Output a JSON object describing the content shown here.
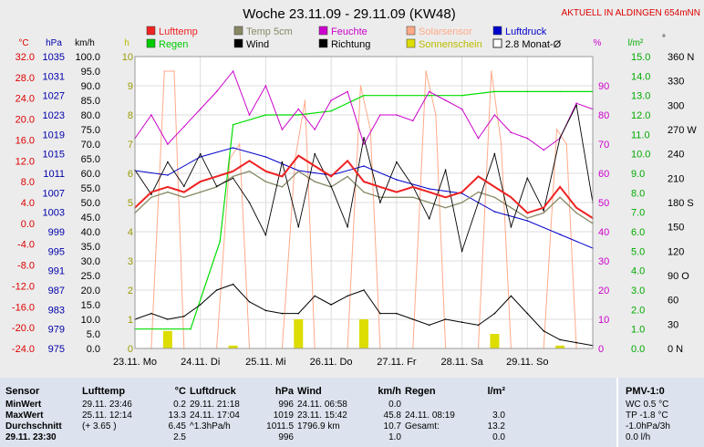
{
  "title": "Woche 23.11.09 - 29.11.09 (KW48)",
  "banner": "AKTUELL IN ALDINGEN 654mNN",
  "axes": {
    "temp": {
      "unit": "°C",
      "ticks": [
        "32.0",
        "28.0",
        "24.0",
        "20.0",
        "16.0",
        "12.0",
        "8.0",
        "4.0",
        "0.0",
        "-4.0",
        "-8.0",
        "-12.0",
        "-16.0",
        "-20.0",
        "-24.0"
      ],
      "color": "#dd0000"
    },
    "pressure": {
      "unit": "hPa",
      "ticks": [
        "1035",
        "1031",
        "1027",
        "1023",
        "1019",
        "1015",
        "1011",
        "1007",
        "1003",
        "999",
        "995",
        "991",
        "987",
        "983",
        "979",
        "975"
      ],
      "color": "#0000aa"
    },
    "wind": {
      "unit": "km/h",
      "ticks": [
        "100.0",
        "95.0",
        "90.0",
        "85.0",
        "80.0",
        "75.0",
        "70.0",
        "65.0",
        "60.0",
        "55.0",
        "50.0",
        "45.0",
        "40.0",
        "35.0",
        "30.0",
        "25.0",
        "20.0",
        "15.0",
        "10.0",
        "5.0",
        "0.0"
      ],
      "color": "#000000"
    },
    "sun": {
      "unit": "h",
      "ticks": [
        "10",
        "9",
        "8",
        "7",
        "6",
        "5",
        "4",
        "3",
        "2",
        "1",
        "0"
      ],
      "color": "#bbbb00"
    },
    "humidity": {
      "unit": "%",
      "ticks": [
        "90",
        "80",
        "70",
        "60",
        "50",
        "40",
        "30",
        "20",
        "10",
        "0"
      ],
      "color": "#cc00cc"
    },
    "rain": {
      "unit": "l/m²",
      "ticks": [
        "15.0",
        "14.0",
        "13.0",
        "12.0",
        "11.0",
        "10.0",
        "9.0",
        "8.0",
        "7.0",
        "6.0",
        "5.0",
        "4.0",
        "3.0",
        "2.0",
        "1.0",
        "0.0"
      ],
      "color": "#00aa00"
    },
    "direction": {
      "unit": "°",
      "ticks": [
        "360 N",
        "330",
        "300",
        "270 W",
        "240",
        "210",
        "180 S",
        "150",
        "120",
        "90 O",
        "60",
        "30",
        "0 N"
      ],
      "color": "#000000"
    }
  },
  "x_ticks": [
    "23.11. Mo",
    "24.11. Di",
    "25.11. Mi",
    "26.11. Do",
    "27.11. Fr",
    "28.11. Sa",
    "29.11. So"
  ],
  "legend": [
    {
      "label": "Lufttemp",
      "color": "#ee2222",
      "type": "box"
    },
    {
      "label": "Temp 5cm",
      "color": "#888866",
      "type": "box"
    },
    {
      "label": "Feuchte",
      "color": "#cc00cc",
      "type": "box"
    },
    {
      "label": "Solarsensor",
      "color": "#ffaa88",
      "type": "box"
    },
    {
      "label": "Luftdruck",
      "color": "#0000cc",
      "type": "box"
    },
    {
      "label": "Regen",
      "color": "#00cc00",
      "type": "box"
    },
    {
      "label": "Wind",
      "color": "#000000",
      "type": "box"
    },
    {
      "label": "Richtung",
      "color": "#000000",
      "type": "box"
    },
    {
      "label": "Sonnenschein",
      "color": "#dddd00",
      "type": "box"
    },
    {
      "label": "2.8 Monat-Ø",
      "color": "#ffffff",
      "type": "outline"
    }
  ],
  "chart_data": {
    "type": "line",
    "title": "Woche 23.11.09 - 29.11.09 (KW48)",
    "xlabel": "",
    "x_categories": [
      "23.11. Mo",
      "24.11. Di",
      "25.11. Mi",
      "26.11. Do",
      "27.11. Fr",
      "28.11. Sa",
      "29.11. So"
    ],
    "xlim_days": [
      0,
      7
    ],
    "series": [
      {
        "name": "Lufttemp",
        "unit": "°C",
        "axis": "temp",
        "ylim": [
          -24,
          32
        ],
        "x": [
          0,
          0.25,
          0.5,
          0.75,
          1,
          1.25,
          1.5,
          1.75,
          2,
          2.25,
          2.5,
          2.75,
          3,
          3.25,
          3.5,
          3.75,
          4,
          4.25,
          4.5,
          4.75,
          5,
          5.25,
          5.5,
          5.75,
          6,
          6.25,
          6.5,
          6.75,
          7
        ],
        "values": [
          3,
          6,
          7,
          6,
          8,
          9,
          10,
          12,
          10,
          9,
          13,
          11,
          9,
          12,
          8,
          7,
          6,
          7,
          6,
          5,
          6,
          9,
          7,
          5,
          2,
          3,
          7,
          3,
          1
        ]
      },
      {
        "name": "Temp 5cm",
        "unit": "°C",
        "axis": "temp",
        "ylim": [
          -24,
          32
        ],
        "x": [
          0,
          0.25,
          0.5,
          0.75,
          1,
          1.25,
          1.5,
          1.75,
          2,
          2.25,
          2.5,
          2.75,
          3,
          3.25,
          3.5,
          3.75,
          4,
          4.25,
          4.5,
          4.75,
          5,
          5.25,
          5.5,
          5.75,
          6,
          6.25,
          6.5,
          6.75,
          7
        ],
        "values": [
          2,
          5,
          6,
          5,
          6,
          7,
          9,
          10,
          8,
          7,
          10,
          8,
          7,
          9,
          6,
          5,
          5,
          5,
          4,
          3,
          4,
          6,
          5,
          3,
          1,
          2,
          5,
          2,
          0
        ]
      },
      {
        "name": "Feuchte",
        "unit": "%",
        "axis": "humidity",
        "ylim": [
          0,
          100
        ],
        "x": [
          0,
          0.25,
          0.5,
          0.75,
          1,
          1.25,
          1.5,
          1.75,
          2,
          2.25,
          2.5,
          2.75,
          3,
          3.25,
          3.5,
          3.75,
          4,
          4.25,
          4.5,
          4.75,
          5,
          5.25,
          5.5,
          5.75,
          6,
          6.25,
          6.5,
          6.75,
          7
        ],
        "values": [
          72,
          80,
          70,
          76,
          82,
          88,
          95,
          80,
          90,
          75,
          82,
          75,
          85,
          88,
          70,
          80,
          80,
          78,
          88,
          85,
          82,
          72,
          80,
          74,
          72,
          68,
          72,
          84,
          82
        ]
      },
      {
        "name": "Luftdruck",
        "unit": "hPa",
        "axis": "pressure",
        "ylim": [
          975,
          1039
        ],
        "x": [
          0,
          0.5,
          1,
          1.5,
          2,
          2.5,
          3,
          3.5,
          4,
          4.5,
          5,
          5.5,
          6,
          6.5,
          7
        ],
        "values": [
          1014,
          1013,
          1017,
          1019,
          1017,
          1014,
          1013,
          1015,
          1012,
          1010,
          1009,
          1005,
          1003,
          1000,
          997
        ]
      },
      {
        "name": "Regen",
        "unit": "l/m²",
        "axis": "rain",
        "ylim": [
          0,
          15
        ],
        "x": [
          0,
          0.85,
          1.3,
          1.5,
          2,
          2.5,
          3,
          3.5,
          4,
          4.5,
          5,
          5.5,
          6,
          6.5,
          7
        ],
        "values": [
          1.0,
          1.0,
          5.5,
          11.5,
          12.0,
          12.0,
          12.2,
          13.0,
          13.0,
          13.0,
          13.0,
          13.2,
          13.2,
          13.2,
          13.2
        ]
      },
      {
        "name": "Wind",
        "unit": "km/h",
        "axis": "wind",
        "ylim": [
          0,
          100
        ],
        "x": [
          0,
          0.25,
          0.5,
          0.75,
          1,
          1.25,
          1.5,
          1.75,
          2,
          2.25,
          2.5,
          2.75,
          3,
          3.25,
          3.5,
          3.75,
          4,
          4.25,
          4.5,
          4.75,
          5,
          5.25,
          5.5,
          5.75,
          6,
          6.25,
          6.5,
          6.75,
          7
        ],
        "values": [
          10,
          12,
          10,
          11,
          15,
          20,
          22,
          16,
          13,
          12,
          12,
          18,
          15,
          18,
          20,
          12,
          12,
          10,
          8,
          10,
          9,
          8,
          12,
          18,
          12,
          6,
          3,
          2,
          1
        ]
      },
      {
        "name": "Richtung",
        "unit": "°",
        "axis": "direction",
        "ylim": [
          0,
          360
        ],
        "x": [
          0,
          0.25,
          0.5,
          0.75,
          1,
          1.25,
          1.5,
          1.75,
          2,
          2.25,
          2.5,
          2.75,
          3,
          3.25,
          3.5,
          3.75,
          4,
          4.25,
          4.5,
          4.75,
          5,
          5.25,
          5.5,
          5.75,
          6,
          6.25,
          6.5,
          6.75,
          7
        ],
        "values": [
          220,
          190,
          230,
          200,
          240,
          200,
          210,
          180,
          140,
          230,
          150,
          240,
          200,
          150,
          260,
          180,
          230,
          200,
          160,
          220,
          120,
          180,
          240,
          150,
          210,
          170,
          260,
          300,
          180
        ]
      },
      {
        "name": "Solarsensor",
        "unit": "%",
        "axis": "humidity",
        "ylim": [
          0,
          100
        ],
        "x": [
          0.25,
          0.45,
          0.6,
          0.75,
          1.25,
          1.45,
          1.6,
          1.75,
          2.25,
          2.45,
          2.6,
          2.75,
          3.25,
          3.45,
          3.6,
          3.75,
          4.25,
          4.45,
          4.6,
          4.75,
          5.25,
          5.45,
          5.6,
          5.75,
          6.25,
          6.45,
          6.6,
          6.75
        ],
        "values": [
          0,
          95,
          95,
          0,
          0,
          65,
          70,
          0,
          0,
          65,
          85,
          0,
          0,
          90,
          75,
          0,
          0,
          95,
          80,
          0,
          0,
          95,
          70,
          0,
          0,
          75,
          70,
          0
        ]
      },
      {
        "name": "Sonnenschein",
        "unit": "h",
        "axis": "sun",
        "ylim": [
          0,
          10
        ],
        "x": [
          0.5,
          1.5,
          2.5,
          3.5,
          4.5,
          5.5,
          6.5
        ],
        "values": [
          0.6,
          0.1,
          1.0,
          1.0,
          0.0,
          0.5,
          0.1
        ]
      }
    ]
  },
  "stats": {
    "sensor": {
      "header": "Sensor",
      "rows": [
        "MinWert",
        "MaxWert",
        "Durchschnitt",
        "29.11. 23:30"
      ]
    },
    "lufttemp": {
      "header": "Lufttemp",
      "unit": "°C",
      "rows": [
        [
          "29.11.  23:46",
          "0.2"
        ],
        [
          "25.11.  12:14",
          "13.3"
        ],
        [
          "(+ 3.65 )",
          "6.45"
        ],
        [
          "",
          "2.5"
        ]
      ]
    },
    "luftdruck": {
      "header": "Luftdruck",
      "unit": "hPa",
      "rows": [
        [
          "29.11.  21:18",
          "996"
        ],
        [
          "24.11.  17:04",
          "1019"
        ],
        [
          "^1.3hPa/h",
          "1011.5"
        ],
        [
          "",
          "996"
        ]
      ]
    },
    "wind": {
      "header": "Wind",
      "unit": "km/h",
      "rows": [
        [
          "24.11.  06:58",
          "0.0"
        ],
        [
          "23.11.  15:42",
          "45.8"
        ],
        [
          "1796.9 km",
          "10.7"
        ],
        [
          "",
          "1.0"
        ]
      ]
    },
    "regen": {
      "header": "Regen",
      "unit": "l/m²",
      "rows": [
        [
          "",
          ""
        ],
        [
          "24.11.  08:19",
          "3.0"
        ],
        [
          "Gesamt:",
          "13.2"
        ],
        [
          "",
          "0.0"
        ]
      ]
    },
    "pmv": {
      "header": "PMV-1:0",
      "rows": [
        "WC 0.5 °C",
        "TP -1.8 °C",
        "-1.0hPa/3h",
        "0.0 l/h"
      ]
    }
  }
}
